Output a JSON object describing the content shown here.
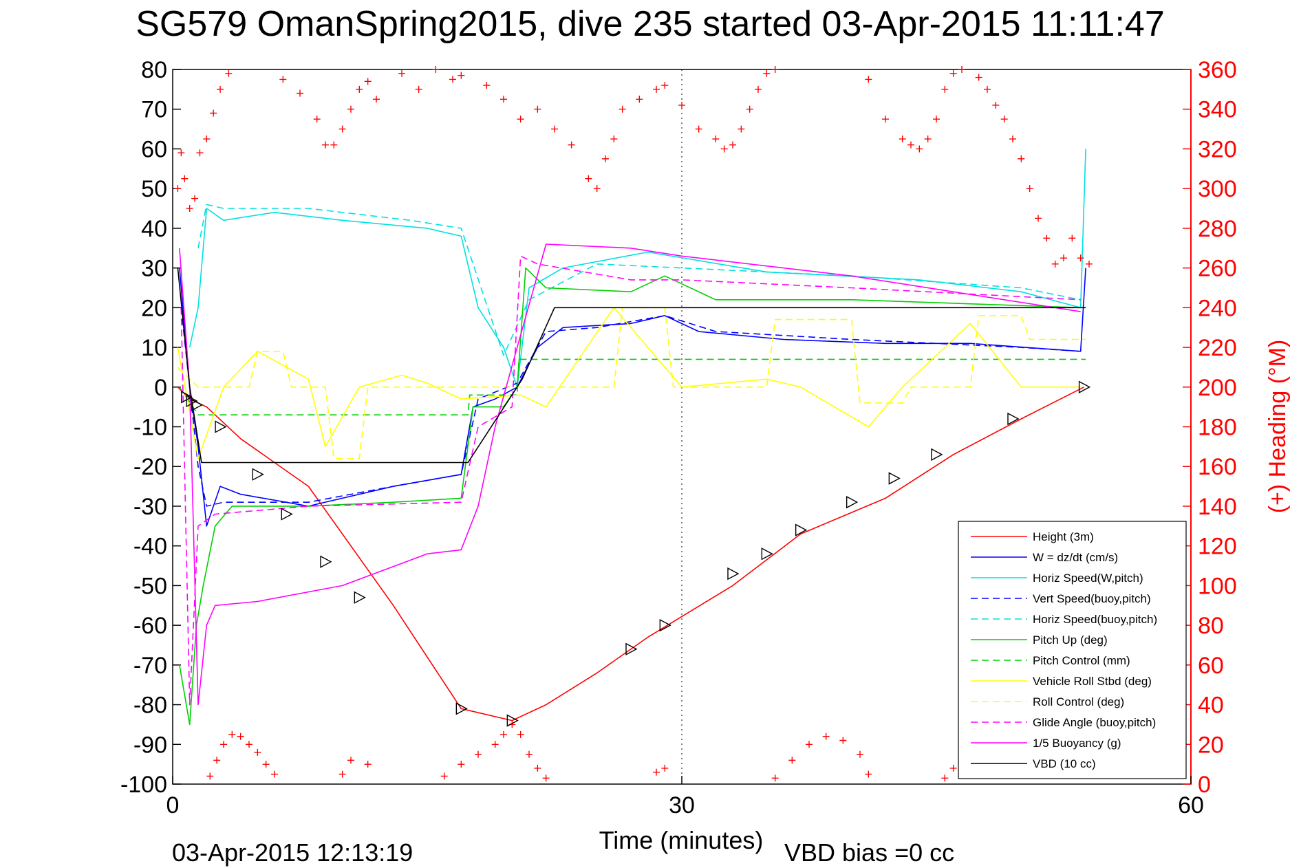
{
  "chart_data": {
    "type": "line",
    "title": "SG579 OmanSpring2015, dive 235 started 03-Apr-2015 11:11:47",
    "xlabel": "Time (minutes)",
    "y2label": "(+) Heading (°M)",
    "xlim": [
      0,
      60
    ],
    "ylim": [
      -100,
      80
    ],
    "y2lim": [
      0,
      360
    ],
    "xticks": [
      0,
      30,
      60
    ],
    "yticks": [
      80,
      70,
      60,
      50,
      40,
      30,
      20,
      10,
      0,
      -10,
      -20,
      -30,
      -40,
      -50,
      -60,
      -70,
      -80,
      -90,
      -100
    ],
    "y2ticks": [
      360,
      340,
      320,
      300,
      280,
      260,
      240,
      220,
      200,
      180,
      160,
      140,
      120,
      100,
      80,
      60,
      40,
      20,
      0
    ],
    "grid_x_at": [
      30
    ],
    "legend_position": "bottom-right",
    "footer_left": "03-Apr-2015 12:13:19",
    "footer_right": "VBD bias =0 cc",
    "series": [
      {
        "name": "Height (3m)",
        "color": "#ff0000",
        "dash": "solid",
        "x": [
          0.3,
          1.0,
          2.0,
          4.0,
          8.0,
          13.0,
          17.0,
          20.0,
          22.0,
          25.0,
          28.0,
          33.0,
          37.0,
          42.0,
          46.0,
          50.0,
          53.7
        ],
        "y": [
          0,
          -3,
          -5,
          -13,
          -25,
          -55,
          -81,
          -84,
          -80,
          -72,
          -63,
          -50,
          -37,
          -28,
          -17,
          -8,
          0
        ]
      },
      {
        "name": "W = dz/dt (cm/s)",
        "color": "#0000ff",
        "dash": "solid",
        "x": [
          0.4,
          1.0,
          1.5,
          2.0,
          2.8,
          4.0,
          8.0,
          13.0,
          17.0,
          17.7,
          19.0,
          20.3,
          21.5,
          23.0,
          27.0,
          29.0,
          31.0,
          36.0,
          42.0,
          47.0,
          53.5,
          53.8
        ],
        "y": [
          30,
          0,
          -15,
          -35,
          -25,
          -27,
          -30,
          -25,
          -22,
          -5,
          -3,
          0,
          10,
          15,
          16,
          18,
          14,
          12,
          11,
          11,
          9,
          30
        ]
      },
      {
        "name": "Horiz Speed(W,pitch)",
        "color": "#00e0e0",
        "dash": "solid",
        "x": [
          1.0,
          1.5,
          2.0,
          3.0,
          6.0,
          10.0,
          15.0,
          17.0,
          18.0,
          19.5,
          20.3,
          21.0,
          23.0,
          28.0,
          35.0,
          44.0,
          50.0,
          53.5,
          53.8
        ],
        "y": [
          10,
          20,
          45,
          42,
          44,
          42,
          40,
          38,
          20,
          10,
          0,
          25,
          30,
          34,
          29,
          27,
          24,
          20,
          60
        ]
      },
      {
        "name": "Vert Speed(buoy,pitch)",
        "color": "#0000ff",
        "dash": "dashed",
        "x": [
          0.5,
          1.5,
          2.0,
          3.0,
          8.0,
          13.0,
          17.0,
          18.0,
          20.3,
          22.0,
          25.0,
          29.0,
          32.0,
          40.0,
          50.0,
          53.5
        ],
        "y": [
          20,
          -20,
          -30,
          -29,
          -29,
          -25,
          -22,
          -3,
          1,
          14,
          15,
          18,
          14,
          12,
          10,
          9
        ]
      },
      {
        "name": "Horiz Speed(buoy,pitch)",
        "color": "#00e0e0",
        "dash": "dashed",
        "x": [
          1.5,
          2.0,
          3.0,
          8.0,
          14.0,
          17.0,
          19.5,
          21.0,
          25.0,
          30.0,
          40.0,
          50.0,
          53.5
        ],
        "y": [
          35,
          46,
          45,
          45,
          42,
          40,
          8,
          22,
          31,
          30,
          28,
          25,
          22
        ]
      },
      {
        "name": "Pitch Up (deg)",
        "color": "#00d000",
        "dash": "solid",
        "x": [
          0.4,
          1.0,
          1.4,
          1.8,
          2.5,
          3.5,
          8.0,
          13.0,
          17.0,
          17.7,
          19.5,
          20.3,
          20.8,
          22.0,
          27.0,
          29.0,
          32.0,
          40.0,
          53.5
        ],
        "y": [
          -70,
          -85,
          -60,
          -50,
          -35,
          -30,
          -30,
          -29,
          -28,
          -5,
          -5,
          0,
          30,
          25,
          24,
          28,
          22,
          22,
          20
        ]
      },
      {
        "name": "Pitch Control (mm)",
        "color": "#00d000",
        "dash": "dashed",
        "x": [
          0.4,
          1.5,
          17.4,
          17.5,
          20.3,
          20.4,
          53.8
        ],
        "y": [
          0,
          -7,
          -7,
          -2,
          -2,
          7,
          7
        ]
      },
      {
        "name": "Vehicle Roll Stbd (deg)",
        "color": "#ffff00",
        "dash": "solid",
        "x": [
          0.3,
          1.5,
          3.0,
          5.0,
          8.0,
          9.0,
          11.0,
          13.5,
          15.0,
          17.0,
          20.5,
          22.0,
          26.0,
          30.0,
          35.0,
          37.0,
          41.0,
          43.0,
          47.0,
          50.0,
          53.5
        ],
        "y": [
          10,
          -18,
          0,
          9,
          2,
          -15,
          0,
          3,
          1,
          -3,
          -2,
          -5,
          20,
          0,
          2,
          0,
          -10,
          0,
          16,
          0,
          0
        ]
      },
      {
        "name": "Roll Control (deg)",
        "color": "#ffff00",
        "dash": "dashed",
        "x": [
          0.3,
          1.5,
          4.5,
          5.0,
          6.5,
          7.0,
          9.0,
          9.5,
          11.0,
          11.5,
          26.0,
          26.5,
          29.0,
          29.5,
          35.0,
          35.5,
          40.0,
          40.5,
          43.0,
          43.5,
          47.0,
          47.5,
          50.0,
          50.5,
          53.8
        ],
        "y": [
          5,
          0,
          0,
          9,
          9,
          0,
          0,
          -18,
          -18,
          0,
          0,
          20,
          20,
          0,
          0,
          17,
          17,
          -4,
          -4,
          0,
          0,
          18,
          18,
          12,
          12
        ]
      },
      {
        "name": "Glide Angle (buoy,pitch)",
        "color": "#ff00ff",
        "dash": "dashed",
        "x": [
          0.5,
          1.0,
          1.5,
          2.5,
          8.0,
          17.0,
          18.0,
          20.0,
          20.5,
          21.5,
          27.0,
          30.0,
          40.0,
          53.5
        ],
        "y": [
          20,
          -80,
          -35,
          -32,
          -30,
          -29,
          -10,
          -5,
          33,
          31,
          27,
          27,
          25,
          22
        ]
      },
      {
        "name": "1/5 Buoyancy (g)",
        "color": "#ff00ff",
        "dash": "solid",
        "x": [
          0.4,
          1.0,
          1.5,
          2.0,
          2.5,
          5.0,
          10.0,
          15.0,
          17.0,
          18.0,
          19.0,
          20.3,
          22.0,
          27.0,
          30.0,
          40.0,
          53.5
        ],
        "y": [
          35,
          0,
          -80,
          -60,
          -55,
          -54,
          -50,
          -42,
          -41,
          -30,
          -10,
          10,
          36,
          35,
          33,
          28,
          19
        ]
      },
      {
        "name": "VBD (10 cc)",
        "color": "#000000",
        "dash": "solid",
        "x": [
          0.3,
          1.0,
          1.7,
          17.4,
          20.6,
          22.5,
          53.8
        ],
        "y": [
          30,
          0,
          -19,
          -19,
          2,
          20,
          20
        ]
      }
    ],
    "heading_points": {
      "color": "#ff0000",
      "marker": "+",
      "x": [
        0.3,
        0.5,
        0.7,
        1.0,
        1.3,
        1.6,
        2.0,
        2.4,
        2.8,
        3.3,
        6.5,
        7.5,
        8.5,
        9.0,
        9.5,
        10.0,
        10.5,
        11.0,
        11.5,
        12.0,
        13.5,
        14.5,
        15.5,
        16.5,
        17.0,
        18.5,
        19.5,
        20.5,
        21.5,
        22.5,
        23.5,
        24.5,
        25.0,
        25.5,
        26.0,
        26.5,
        27.5,
        28.5,
        29.0,
        30.0,
        31.0,
        32.0,
        32.5,
        33.0,
        33.5,
        34.0,
        34.5,
        35.0,
        35.5,
        41.0,
        42.0,
        43.0,
        43.5,
        44.0,
        44.5,
        45.0,
        45.5,
        46.0,
        46.5,
        47.5,
        48.0,
        48.5,
        49.0,
        49.5,
        50.0,
        50.5,
        51.0,
        51.5,
        52.0,
        52.5,
        53.0,
        53.5,
        54.0
      ],
      "y": [
        300,
        318,
        305,
        290,
        295,
        318,
        325,
        338,
        350,
        358,
        355,
        348,
        335,
        322,
        322,
        330,
        340,
        350,
        354,
        345,
        358,
        350,
        360,
        355,
        357,
        352,
        345,
        335,
        340,
        330,
        322,
        305,
        300,
        315,
        325,
        340,
        345,
        350,
        352,
        342,
        330,
        325,
        320,
        322,
        330,
        340,
        350,
        358,
        360,
        355,
        335,
        325,
        322,
        320,
        325,
        335,
        350,
        358,
        360,
        356,
        350,
        342,
        335,
        325,
        315,
        300,
        285,
        275,
        262,
        265,
        275,
        265,
        262
      ]
    },
    "heading_points_bottom": {
      "color": "#ff0000",
      "marker": "+",
      "x": [
        2.2,
        2.6,
        3.0,
        3.5,
        4.0,
        4.5,
        5.0,
        5.5,
        6.0,
        10.0,
        10.5,
        11.5,
        16.0,
        17.0,
        18.0,
        19.0,
        19.5,
        20.0,
        20.5,
        21.0,
        21.5,
        22.0,
        28.5,
        29.0,
        35.5,
        36.5,
        37.5,
        38.5,
        39.5,
        40.5,
        41.0,
        45.5,
        46.0,
        46.5
      ],
      "y": [
        4,
        12,
        20,
        25,
        24,
        20,
        16,
        10,
        5,
        5,
        12,
        10,
        4,
        10,
        15,
        20,
        25,
        30,
        25,
        15,
        8,
        3,
        6,
        8,
        3,
        12,
        20,
        24,
        22,
        15,
        5,
        3,
        8,
        5
      ]
    },
    "triangle_markers": {
      "x": [
        0.8,
        1.1,
        1.4,
        2.8,
        5.0,
        6.7,
        9.0,
        11.0,
        17.0,
        20.0,
        27.0,
        29.0,
        33.0,
        35.0,
        37.0,
        40.0,
        42.5,
        45.0,
        49.5,
        53.7
      ],
      "y": [
        -2.5,
        -3.5,
        -4.5,
        -10,
        -22,
        -32,
        -44,
        -53,
        -81,
        -84,
        -66,
        -60,
        -47,
        -42,
        -36,
        -29,
        -23,
        -17,
        -8,
        0
      ]
    },
    "legend": [
      {
        "label": "Height (3m)",
        "color": "#ff0000",
        "dash": "solid"
      },
      {
        "label": "W = dz/dt (cm/s)",
        "color": "#0000ff",
        "dash": "solid"
      },
      {
        "label": "Horiz Speed(W,pitch)",
        "color": "#00e0e0",
        "dash": "solid"
      },
      {
        "label": "Vert Speed(buoy,pitch)",
        "color": "#0000ff",
        "dash": "dashed"
      },
      {
        "label": "Horiz Speed(buoy,pitch)",
        "color": "#00e0e0",
        "dash": "dashed"
      },
      {
        "label": "Pitch Up (deg)",
        "color": "#00d000",
        "dash": "solid"
      },
      {
        "label": "Pitch Control (mm)",
        "color": "#00d000",
        "dash": "dashed"
      },
      {
        "label": "Vehicle Roll Stbd (deg)",
        "color": "#ffff00",
        "dash": "solid"
      },
      {
        "label": "Roll Control (deg)",
        "color": "#ffff00",
        "dash": "dashed"
      },
      {
        "label": "Glide Angle (buoy,pitch)",
        "color": "#ff00ff",
        "dash": "dashed"
      },
      {
        "label": "1/5 Buoyancy (g)",
        "color": "#ff00ff",
        "dash": "solid"
      },
      {
        "label": "VBD (10 cc)",
        "color": "#000000",
        "dash": "solid"
      }
    ]
  }
}
